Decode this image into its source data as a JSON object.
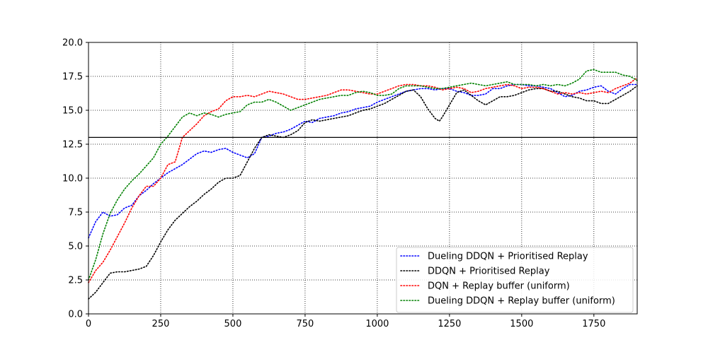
{
  "chart_data": {
    "type": "line",
    "title": "",
    "xlabel": "",
    "ylabel": "",
    "xlim": [
      0,
      1900
    ],
    "ylim": [
      0,
      20
    ],
    "x_ticks": [
      0,
      250,
      500,
      750,
      1000,
      1250,
      1500,
      1750
    ],
    "x_tick_labels": [
      "0",
      "250",
      "500",
      "750",
      "1000",
      "1250",
      "1500",
      "1750"
    ],
    "y_ticks": [
      0,
      2.5,
      5,
      7.5,
      10,
      12.5,
      15,
      17.5,
      20
    ],
    "y_tick_labels": [
      "0.0",
      "2.5",
      "5.0",
      "7.5",
      "10.0",
      "12.5",
      "15.0",
      "17.5",
      "20.0"
    ],
    "grid": true,
    "grid_style": "dotted",
    "legend_position": "bottom-right",
    "reference_line": {
      "y": 13,
      "color": "#000000",
      "style": "solid"
    },
    "series": [
      {
        "name": "Dueling DDQN + Prioritised Replay",
        "color": "#0000ff",
        "style": "dotted",
        "points": [
          [
            0,
            5.6
          ],
          [
            25,
            6.8
          ],
          [
            50,
            7.5
          ],
          [
            75,
            7.2
          ],
          [
            100,
            7.3
          ],
          [
            125,
            7.8
          ],
          [
            150,
            8.0
          ],
          [
            175,
            8.7
          ],
          [
            200,
            9.1
          ],
          [
            225,
            9.6
          ],
          [
            250,
            10.0
          ],
          [
            275,
            10.4
          ],
          [
            300,
            10.7
          ],
          [
            325,
            11.0
          ],
          [
            350,
            11.4
          ],
          [
            375,
            11.8
          ],
          [
            400,
            12.0
          ],
          [
            425,
            11.9
          ],
          [
            450,
            12.1
          ],
          [
            475,
            12.2
          ],
          [
            500,
            11.9
          ],
          [
            525,
            11.7
          ],
          [
            550,
            11.5
          ],
          [
            575,
            11.8
          ],
          [
            600,
            13.0
          ],
          [
            625,
            13.1
          ],
          [
            650,
            13.3
          ],
          [
            675,
            13.4
          ],
          [
            700,
            13.6
          ],
          [
            725,
            13.9
          ],
          [
            750,
            14.2
          ],
          [
            775,
            14.1
          ],
          [
            800,
            14.4
          ],
          [
            825,
            14.5
          ],
          [
            850,
            14.6
          ],
          [
            875,
            14.8
          ],
          [
            900,
            14.9
          ],
          [
            925,
            15.1
          ],
          [
            950,
            15.2
          ],
          [
            975,
            15.3
          ],
          [
            1000,
            15.6
          ],
          [
            1025,
            15.8
          ],
          [
            1050,
            16.0
          ],
          [
            1075,
            16.2
          ],
          [
            1100,
            16.4
          ],
          [
            1125,
            16.5
          ],
          [
            1150,
            16.6
          ],
          [
            1175,
            16.6
          ],
          [
            1200,
            16.5
          ],
          [
            1225,
            16.6
          ],
          [
            1250,
            16.6
          ],
          [
            1275,
            16.4
          ],
          [
            1300,
            16.3
          ],
          [
            1325,
            16.1
          ],
          [
            1350,
            16.1
          ],
          [
            1375,
            16.2
          ],
          [
            1400,
            16.6
          ],
          [
            1425,
            16.6
          ],
          [
            1450,
            16.8
          ],
          [
            1475,
            16.9
          ],
          [
            1500,
            16.9
          ],
          [
            1525,
            16.8
          ],
          [
            1550,
            16.8
          ],
          [
            1575,
            16.7
          ],
          [
            1600,
            16.6
          ],
          [
            1625,
            16.3
          ],
          [
            1650,
            16.0
          ],
          [
            1675,
            16.1
          ],
          [
            1700,
            16.4
          ],
          [
            1725,
            16.5
          ],
          [
            1750,
            16.7
          ],
          [
            1775,
            16.8
          ],
          [
            1800,
            16.4
          ],
          [
            1825,
            16.2
          ],
          [
            1850,
            16.6
          ],
          [
            1875,
            16.9
          ],
          [
            1900,
            16.9
          ]
        ]
      },
      {
        "name": "DDQN + Prioritised Replay",
        "color": "#000000",
        "style": "dotted",
        "points": [
          [
            0,
            1.1
          ],
          [
            25,
            1.6
          ],
          [
            50,
            2.3
          ],
          [
            75,
            3.0
          ],
          [
            100,
            3.1
          ],
          [
            125,
            3.1
          ],
          [
            150,
            3.2
          ],
          [
            175,
            3.3
          ],
          [
            200,
            3.5
          ],
          [
            225,
            4.3
          ],
          [
            250,
            5.3
          ],
          [
            275,
            6.2
          ],
          [
            300,
            6.9
          ],
          [
            325,
            7.4
          ],
          [
            350,
            7.9
          ],
          [
            375,
            8.3
          ],
          [
            400,
            8.8
          ],
          [
            425,
            9.2
          ],
          [
            450,
            9.7
          ],
          [
            475,
            10.0
          ],
          [
            500,
            10.0
          ],
          [
            525,
            10.2
          ],
          [
            550,
            11.2
          ],
          [
            575,
            12.2
          ],
          [
            600,
            13.0
          ],
          [
            625,
            13.2
          ],
          [
            650,
            13.1
          ],
          [
            675,
            13.0
          ],
          [
            700,
            13.2
          ],
          [
            725,
            13.5
          ],
          [
            750,
            14.1
          ],
          [
            775,
            14.3
          ],
          [
            800,
            14.2
          ],
          [
            825,
            14.3
          ],
          [
            850,
            14.4
          ],
          [
            875,
            14.5
          ],
          [
            900,
            14.6
          ],
          [
            925,
            14.8
          ],
          [
            950,
            15.0
          ],
          [
            975,
            15.1
          ],
          [
            1000,
            15.3
          ],
          [
            1025,
            15.5
          ],
          [
            1050,
            15.8
          ],
          [
            1075,
            16.1
          ],
          [
            1100,
            16.4
          ],
          [
            1125,
            16.5
          ],
          [
            1150,
            16.0
          ],
          [
            1175,
            15.1
          ],
          [
            1200,
            14.4
          ],
          [
            1215,
            14.2
          ],
          [
            1225,
            14.5
          ],
          [
            1250,
            15.4
          ],
          [
            1275,
            16.3
          ],
          [
            1300,
            16.5
          ],
          [
            1325,
            16.1
          ],
          [
            1350,
            15.7
          ],
          [
            1375,
            15.4
          ],
          [
            1400,
            15.7
          ],
          [
            1425,
            16.0
          ],
          [
            1450,
            16.0
          ],
          [
            1475,
            16.1
          ],
          [
            1500,
            16.3
          ],
          [
            1525,
            16.5
          ],
          [
            1550,
            16.6
          ],
          [
            1575,
            16.6
          ],
          [
            1600,
            16.4
          ],
          [
            1625,
            16.4
          ],
          [
            1650,
            16.2
          ],
          [
            1675,
            16.0
          ],
          [
            1700,
            15.9
          ],
          [
            1725,
            15.7
          ],
          [
            1750,
            15.7
          ],
          [
            1775,
            15.5
          ],
          [
            1800,
            15.5
          ],
          [
            1825,
            15.8
          ],
          [
            1850,
            16.1
          ],
          [
            1875,
            16.4
          ],
          [
            1900,
            16.8
          ]
        ]
      },
      {
        "name": "DQN + Replay buffer (uniform)",
        "color": "#ff0000",
        "style": "dotted",
        "points": [
          [
            0,
            2.3
          ],
          [
            25,
            3.2
          ],
          [
            50,
            3.8
          ],
          [
            75,
            4.7
          ],
          [
            100,
            5.7
          ],
          [
            125,
            6.7
          ],
          [
            150,
            7.8
          ],
          [
            175,
            8.7
          ],
          [
            200,
            9.4
          ],
          [
            225,
            9.4
          ],
          [
            250,
            10.0
          ],
          [
            275,
            11.0
          ],
          [
            300,
            11.2
          ],
          [
            325,
            13.0
          ],
          [
            350,
            13.5
          ],
          [
            375,
            14.0
          ],
          [
            400,
            14.6
          ],
          [
            425,
            14.9
          ],
          [
            450,
            15.1
          ],
          [
            475,
            15.7
          ],
          [
            500,
            16.0
          ],
          [
            525,
            16.0
          ],
          [
            550,
            16.1
          ],
          [
            575,
            16.0
          ],
          [
            600,
            16.2
          ],
          [
            625,
            16.4
          ],
          [
            650,
            16.3
          ],
          [
            675,
            16.2
          ],
          [
            700,
            16.0
          ],
          [
            725,
            15.8
          ],
          [
            750,
            15.8
          ],
          [
            775,
            15.9
          ],
          [
            800,
            16.0
          ],
          [
            825,
            16.1
          ],
          [
            850,
            16.3
          ],
          [
            875,
            16.5
          ],
          [
            900,
            16.5
          ],
          [
            925,
            16.4
          ],
          [
            950,
            16.3
          ],
          [
            975,
            16.2
          ],
          [
            1000,
            16.2
          ],
          [
            1025,
            16.4
          ],
          [
            1050,
            16.6
          ],
          [
            1075,
            16.8
          ],
          [
            1100,
            16.9
          ],
          [
            1125,
            16.9
          ],
          [
            1150,
            16.8
          ],
          [
            1175,
            16.8
          ],
          [
            1200,
            16.7
          ],
          [
            1225,
            16.5
          ],
          [
            1250,
            16.6
          ],
          [
            1275,
            16.7
          ],
          [
            1300,
            16.6
          ],
          [
            1325,
            16.3
          ],
          [
            1350,
            16.4
          ],
          [
            1375,
            16.6
          ],
          [
            1400,
            16.7
          ],
          [
            1425,
            16.8
          ],
          [
            1450,
            16.9
          ],
          [
            1475,
            16.8
          ],
          [
            1500,
            16.6
          ],
          [
            1525,
            16.7
          ],
          [
            1550,
            16.7
          ],
          [
            1575,
            16.6
          ],
          [
            1600,
            16.4
          ],
          [
            1625,
            16.2
          ],
          [
            1650,
            16.3
          ],
          [
            1675,
            16.2
          ],
          [
            1700,
            16.3
          ],
          [
            1725,
            16.2
          ],
          [
            1750,
            16.3
          ],
          [
            1775,
            16.4
          ],
          [
            1800,
            16.3
          ],
          [
            1825,
            16.6
          ],
          [
            1850,
            16.8
          ],
          [
            1875,
            17.0
          ],
          [
            1900,
            17.4
          ]
        ]
      },
      {
        "name": "Dueling DDQN + Replay buffer (uniform)",
        "color": "#008000",
        "style": "dotted",
        "points": [
          [
            0,
            2.5
          ],
          [
            25,
            4.0
          ],
          [
            50,
            5.9
          ],
          [
            75,
            7.4
          ],
          [
            100,
            8.4
          ],
          [
            125,
            9.2
          ],
          [
            150,
            9.8
          ],
          [
            175,
            10.3
          ],
          [
            200,
            10.9
          ],
          [
            225,
            11.5
          ],
          [
            250,
            12.5
          ],
          [
            275,
            13.1
          ],
          [
            300,
            13.8
          ],
          [
            325,
            14.5
          ],
          [
            350,
            14.8
          ],
          [
            375,
            14.6
          ],
          [
            400,
            14.8
          ],
          [
            425,
            14.7
          ],
          [
            450,
            14.5
          ],
          [
            475,
            14.7
          ],
          [
            500,
            14.8
          ],
          [
            525,
            14.9
          ],
          [
            550,
            15.4
          ],
          [
            575,
            15.6
          ],
          [
            600,
            15.6
          ],
          [
            625,
            15.8
          ],
          [
            650,
            15.6
          ],
          [
            675,
            15.3
          ],
          [
            700,
            15.0
          ],
          [
            725,
            15.2
          ],
          [
            750,
            15.4
          ],
          [
            775,
            15.6
          ],
          [
            800,
            15.8
          ],
          [
            825,
            15.9
          ],
          [
            850,
            16.0
          ],
          [
            875,
            16.1
          ],
          [
            900,
            16.1
          ],
          [
            925,
            16.3
          ],
          [
            950,
            16.4
          ],
          [
            975,
            16.3
          ],
          [
            1000,
            16.1
          ],
          [
            1025,
            16.1
          ],
          [
            1050,
            16.2
          ],
          [
            1075,
            16.6
          ],
          [
            1100,
            16.8
          ],
          [
            1125,
            16.8
          ],
          [
            1150,
            16.8
          ],
          [
            1175,
            16.7
          ],
          [
            1200,
            16.6
          ],
          [
            1225,
            16.6
          ],
          [
            1250,
            16.7
          ],
          [
            1275,
            16.8
          ],
          [
            1300,
            16.9
          ],
          [
            1325,
            17.0
          ],
          [
            1350,
            16.9
          ],
          [
            1375,
            16.8
          ],
          [
            1400,
            16.9
          ],
          [
            1425,
            17.0
          ],
          [
            1450,
            17.1
          ],
          [
            1475,
            16.9
          ],
          [
            1500,
            16.9
          ],
          [
            1525,
            16.9
          ],
          [
            1550,
            16.8
          ],
          [
            1575,
            16.9
          ],
          [
            1600,
            16.8
          ],
          [
            1625,
            16.9
          ],
          [
            1650,
            16.8
          ],
          [
            1675,
            17.0
          ],
          [
            1700,
            17.3
          ],
          [
            1725,
            17.9
          ],
          [
            1750,
            18.0
          ],
          [
            1775,
            17.8
          ],
          [
            1800,
            17.8
          ],
          [
            1825,
            17.8
          ],
          [
            1850,
            17.6
          ],
          [
            1875,
            17.5
          ],
          [
            1900,
            17.2
          ]
        ]
      }
    ]
  }
}
